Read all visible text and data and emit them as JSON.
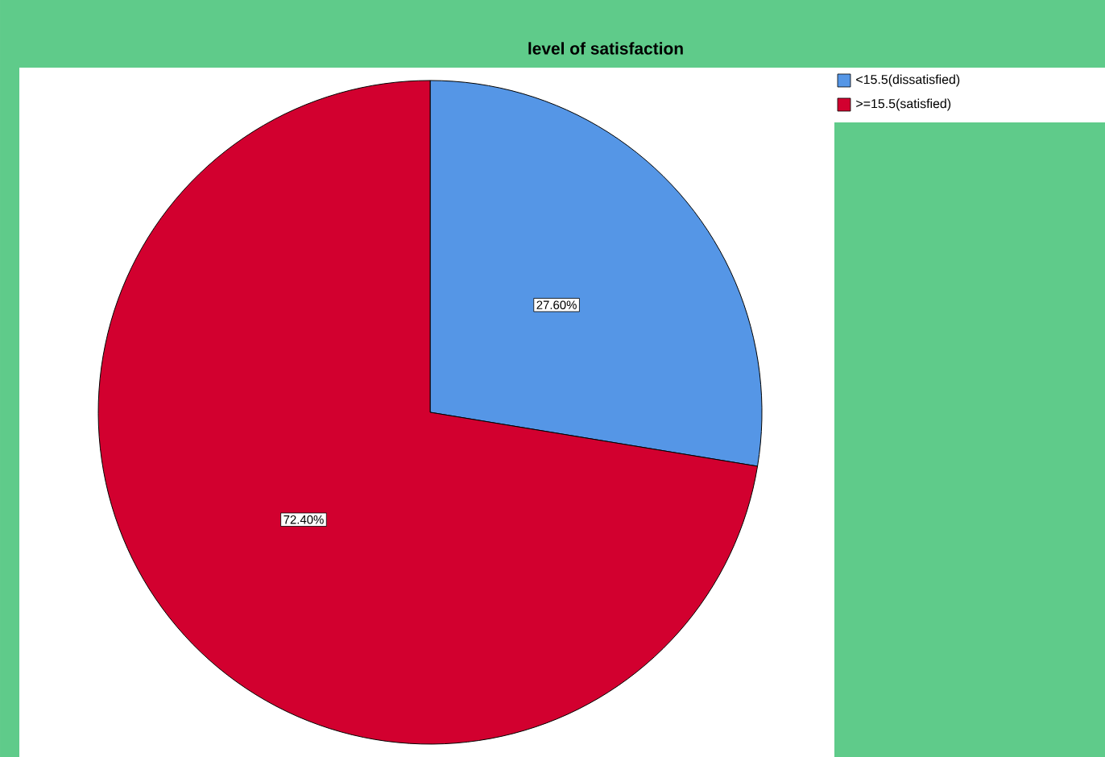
{
  "chart_data": {
    "type": "pie",
    "title": "level of satisfaction",
    "categories": [
      "<15.5(dissatisfied)",
      ">=15.5(satisfied)"
    ],
    "values": [
      27.6,
      72.4
    ],
    "colors": [
      "#5596e6",
      "#d2002f"
    ],
    "value_labels": [
      "27.60%",
      "72.40%"
    ],
    "legend": "top right"
  }
}
